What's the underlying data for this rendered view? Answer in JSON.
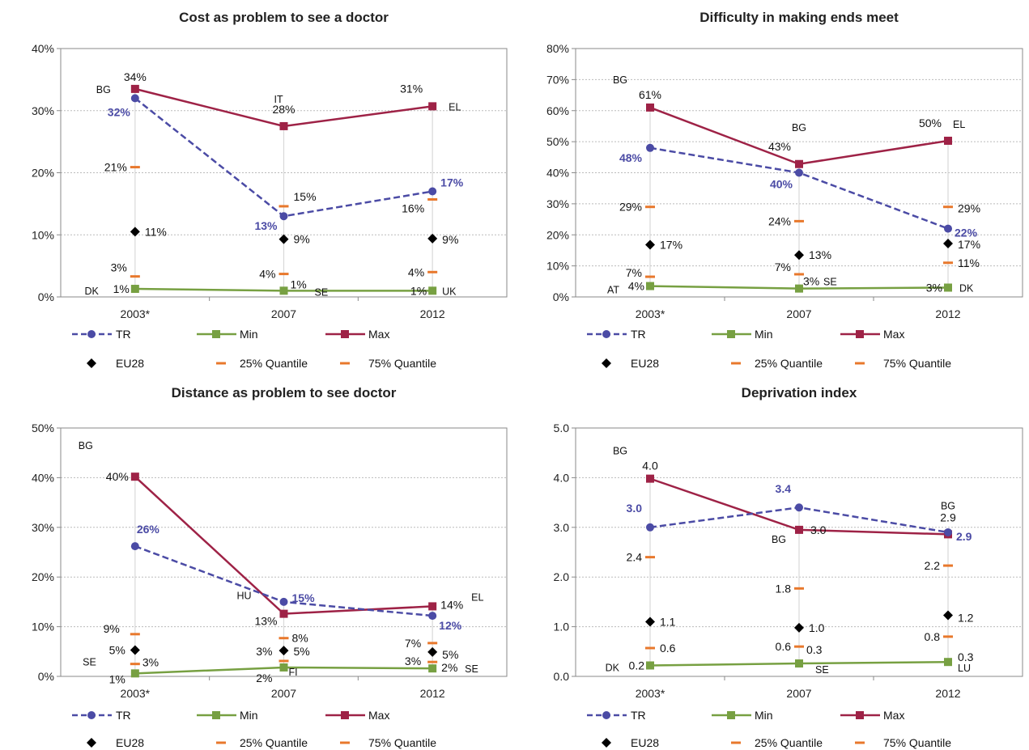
{
  "legend": {
    "tr": "TR",
    "min": "Min",
    "max": "Max",
    "eu28": "EU28",
    "q25": "25% Quantile",
    "q75": "75% Quantile"
  },
  "colors": {
    "tr": "#4B4BA5",
    "min": "#77A042",
    "max": "#9E2246",
    "eu28": "#000000",
    "quantile": "#E8782C",
    "axis": "#8A8A8A",
    "grid": "#BBBBBB",
    "range": "#D9D9D9"
  },
  "chart_data": [
    {
      "type": "line",
      "title": "Cost as problem to see a doctor",
      "categories": [
        "2003*",
        "2007",
        "2012"
      ],
      "y_ticks": [
        "0%",
        "10%",
        "20%",
        "30%",
        "40%"
      ],
      "ylim": [
        0,
        40
      ],
      "tr": [
        32,
        13,
        17
      ],
      "tr_labels": [
        "32%",
        "13%",
        "17%"
      ],
      "min": [
        1.3,
        1.0,
        1.0
      ],
      "min_labels": [
        "1%",
        "1%",
        "1%"
      ],
      "min_countries": [
        "DK",
        "SE",
        "UK"
      ],
      "max": [
        33.5,
        27.5,
        30.7
      ],
      "max_labels": [
        "34%",
        "28%",
        "31%"
      ],
      "max_countries": [
        "BG",
        "IT",
        "EL"
      ],
      "eu28": [
        10.5,
        9.3,
        9.4
      ],
      "eu28_labels": [
        "11%",
        "9%",
        "9%"
      ],
      "q25": [
        3.3,
        3.7,
        4.0
      ],
      "q25_labels": [
        "3%",
        "4%",
        "4%"
      ],
      "q75": [
        20.9,
        14.6,
        15.7
      ],
      "q75_labels": [
        "21%",
        "15%",
        "16%"
      ]
    },
    {
      "type": "line",
      "title": "Difficulty in making ends meet",
      "categories": [
        "2003*",
        "2007",
        "2012"
      ],
      "y_ticks": [
        "0%",
        "10%",
        "20%",
        "30%",
        "40%",
        "50%",
        "60%",
        "70%",
        "80%"
      ],
      "ylim": [
        0,
        80
      ],
      "tr": [
        48,
        40,
        22
      ],
      "tr_labels": [
        "48%",
        "40%",
        "22%"
      ],
      "min": [
        3.5,
        2.7,
        3.0
      ],
      "min_labels": [
        "4%",
        "3%",
        "3%"
      ],
      "min_countries": [
        "AT",
        "SE",
        "DK"
      ],
      "max": [
        61,
        42.8,
        50.3
      ],
      "max_labels": [
        "61%",
        "43%",
        "50%"
      ],
      "max_countries": [
        "BG",
        "BG",
        "EL"
      ],
      "eu28": [
        16.8,
        13.5,
        17.2
      ],
      "eu28_labels": [
        "17%",
        "13%",
        "17%"
      ],
      "q25": [
        6.5,
        7.3,
        11.0
      ],
      "q25_labels": [
        "7%",
        "7%",
        "11%"
      ],
      "q75": [
        29.0,
        24.4,
        29.0
      ],
      "q75_labels": [
        "29%",
        "24%",
        "29%"
      ]
    },
    {
      "type": "line",
      "title": "Distance as problem to see doctor",
      "categories": [
        "2003*",
        "2007",
        "2012"
      ],
      "y_ticks": [
        "0%",
        "10%",
        "20%",
        "30%",
        "40%",
        "50%"
      ],
      "ylim": [
        0,
        50
      ],
      "tr": [
        26.2,
        15.0,
        12.2
      ],
      "tr_labels": [
        "26%",
        "15%",
        "12%"
      ],
      "min": [
        0.6,
        1.8,
        1.6
      ],
      "min_labels": [
        "1%",
        "2%",
        "2%"
      ],
      "min_countries": [
        "SE",
        "FI",
        "SE"
      ],
      "max": [
        40.2,
        12.6,
        14.1
      ],
      "max_labels": [
        "40%",
        "13%",
        "14%"
      ],
      "max_countries": [
        "BG",
        "HU",
        "EL"
      ],
      "eu28": [
        5.3,
        5.2,
        4.9
      ],
      "eu28_labels": [
        "5%",
        "5%",
        "5%"
      ],
      "q25": [
        2.5,
        3.1,
        2.9
      ],
      "q25_labels": [
        "3%",
        "3%",
        "3%"
      ],
      "q75": [
        8.5,
        7.7,
        6.7
      ],
      "q75_labels": [
        "9%",
        "8%",
        "7%"
      ]
    },
    {
      "type": "line",
      "title": "Deprivation index",
      "categories": [
        "2003*",
        "2007",
        "2012"
      ],
      "y_ticks": [
        "0.0",
        "1.0",
        "2.0",
        "3.0",
        "4.0",
        "5.0"
      ],
      "ylim": [
        0,
        5
      ],
      "tr": [
        3.0,
        3.4,
        2.9
      ],
      "tr_labels": [
        "3.0",
        "3.4",
        "2.9"
      ],
      "min": [
        0.22,
        0.26,
        0.29
      ],
      "min_labels": [
        "0.2",
        "0.3",
        "0.3"
      ],
      "min_countries": [
        "DK",
        "SE",
        "LU"
      ],
      "max": [
        3.98,
        2.95,
        2.86
      ],
      "max_labels": [
        "4.0",
        "3.0",
        "2.9"
      ],
      "max_countries": [
        "BG",
        "BG",
        "BG"
      ],
      "eu28": [
        1.1,
        0.98,
        1.23
      ],
      "eu28_labels": [
        "1.1",
        "1.0",
        "1.2"
      ],
      "q25": [
        0.57,
        0.6,
        0.8
      ],
      "q25_labels": [
        "0.6",
        "0.6",
        "0.8"
      ],
      "q75": [
        2.4,
        1.77,
        2.23
      ],
      "q75_labels": [
        "2.4",
        "1.8",
        "2.2"
      ]
    }
  ]
}
